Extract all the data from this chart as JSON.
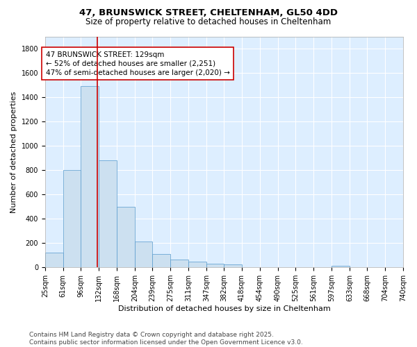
{
  "title1": "47, BRUNSWICK STREET, CHELTENHAM, GL50 4DD",
  "title2": "Size of property relative to detached houses in Cheltenham",
  "xlabel": "Distribution of detached houses by size in Cheltenham",
  "ylabel": "Number of detached properties",
  "bin_edges": [
    25,
    61,
    96,
    132,
    168,
    204,
    239,
    275,
    311,
    347,
    382,
    418,
    454,
    490,
    525,
    561,
    597,
    633,
    668,
    704,
    740
  ],
  "bar_heights": [
    120,
    800,
    1490,
    880,
    500,
    210,
    110,
    65,
    45,
    30,
    25,
    0,
    0,
    0,
    0,
    0,
    15,
    0,
    0,
    0
  ],
  "bar_color": "#cce0f0",
  "bar_edge_color": "#5599cc",
  "property_size": 129,
  "red_line_color": "#cc0000",
  "annotation_line1": "47 BRUNSWICK STREET: 129sqm",
  "annotation_line2": "← 52% of detached houses are smaller (2,251)",
  "annotation_line3": "47% of semi-detached houses are larger (2,020) →",
  "annotation_box_color": "#ffffff",
  "annotation_box_edge": "#cc0000",
  "ylim": [
    0,
    1900
  ],
  "yticks": [
    0,
    200,
    400,
    600,
    800,
    1000,
    1200,
    1400,
    1600,
    1800
  ],
  "footer1": "Contains HM Land Registry data © Crown copyright and database right 2025.",
  "footer2": "Contains public sector information licensed under the Open Government Licence v3.0.",
  "background_color": "#ddeeff",
  "title1_fontsize": 9.5,
  "title2_fontsize": 8.5,
  "xlabel_fontsize": 8,
  "ylabel_fontsize": 8,
  "tick_fontsize": 7,
  "annotation_fontsize": 7.5,
  "footer_fontsize": 6.5
}
